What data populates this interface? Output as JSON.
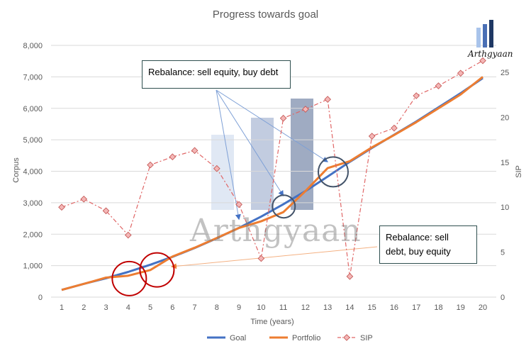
{
  "chart_data": {
    "type": "line",
    "title": "Progress towards goal",
    "xlabel": "Time (years)",
    "ylabel": "Corpus",
    "y2label": "SIP",
    "x": [
      1,
      2,
      3,
      4,
      5,
      6,
      7,
      8,
      9,
      10,
      11,
      12,
      13,
      14,
      15,
      16,
      17,
      18,
      19,
      20
    ],
    "ylim": [
      0,
      8000
    ],
    "y_ticks": [
      "0",
      "1,000",
      "2,000",
      "3,000",
      "4,000",
      "5,000",
      "6,000",
      "7,000",
      "8,000"
    ],
    "y2lim": [
      0,
      28
    ],
    "y2_ticks": [
      "0",
      "5",
      "10",
      "15",
      "20",
      "25"
    ],
    "grid": "horizontal",
    "legend_position": "bottom",
    "series": [
      {
        "name": "Goal",
        "axis": "left",
        "color": "#4472c4",
        "values": [
          230,
          420,
          600,
          800,
          1030,
          1280,
          1560,
          1870,
          2200,
          2560,
          2950,
          3370,
          3830,
          4300,
          4740,
          5160,
          5580,
          6030,
          6480,
          6960
        ]
      },
      {
        "name": "Portfolio",
        "axis": "left",
        "color": "#ed7d31",
        "values": [
          230,
          420,
          620,
          680,
          860,
          1290,
          1570,
          1880,
          2200,
          2410,
          2700,
          3370,
          4100,
          4320,
          4760,
          5150,
          5560,
          6000,
          6440,
          7000
        ]
      },
      {
        "name": "SIP",
        "axis": "right",
        "color": "#e06666",
        "values": [
          10,
          10.9,
          9.6,
          6.9,
          14.7,
          15.6,
          16.3,
          14.3,
          10.3,
          4.3,
          19.9,
          20.9,
          22,
          2.3,
          17.9,
          18.8,
          22.4,
          23.5,
          24.9,
          26.3
        ]
      }
    ],
    "annotations": {
      "callout_top": "Rebalance: sell equity, buy debt",
      "callout_bottom": "Rebalance: sell\ndebt, buy equity"
    }
  },
  "watermark": "Arthgyaan",
  "logo_text": "Arthgyaan"
}
